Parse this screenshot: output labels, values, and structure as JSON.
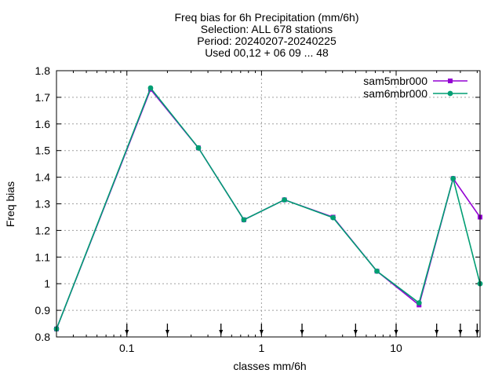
{
  "chart_data": {
    "type": "line",
    "title_lines": [
      "Freq bias  for 6h Precipitation (mm/6h)",
      "Selection: ALL    678 stations",
      "Period: 20240207-20240225",
      "Used 00,12 + 06 09 ... 48"
    ],
    "xlabel": "classes mm/6h",
    "ylabel": "Freq bias",
    "xscale": "log",
    "xlim": [
      0.03,
      42
    ],
    "ylim": [
      0.8,
      1.8
    ],
    "x_ticks": [
      0.1,
      1,
      10
    ],
    "x_tick_labels": [
      "0.1",
      "1",
      "10"
    ],
    "y_ticks": [
      0.8,
      0.9,
      1.0,
      1.1,
      1.2,
      1.3,
      1.4,
      1.5,
      1.6,
      1.7,
      1.8
    ],
    "y_tick_labels": [
      "0.8",
      "0.9",
      "1",
      "1.1",
      "1.2",
      "1.3",
      "1.4",
      "1.5",
      "1.6",
      "1.7",
      "1.8"
    ],
    "grid": true,
    "legend_position": "top-right",
    "class_markers": [
      0.1,
      0.2,
      0.5,
      1,
      2,
      5,
      10,
      20,
      30,
      40
    ],
    "x": [
      0.03,
      0.15,
      0.34,
      0.74,
      1.48,
      3.4,
      7.2,
      14.8,
      26.5,
      42
    ],
    "series": [
      {
        "name": "sam5mbr000",
        "color": "#9400d3",
        "values": [
          0.83,
          1.73,
          1.51,
          1.24,
          1.315,
          1.25,
          1.047,
          0.92,
          1.395,
          1.25
        ]
      },
      {
        "name": "sam6mbr000",
        "color": "#009e73",
        "values": [
          0.83,
          1.735,
          1.51,
          1.24,
          1.315,
          1.248,
          1.047,
          0.928,
          1.395,
          1.0
        ]
      }
    ]
  }
}
